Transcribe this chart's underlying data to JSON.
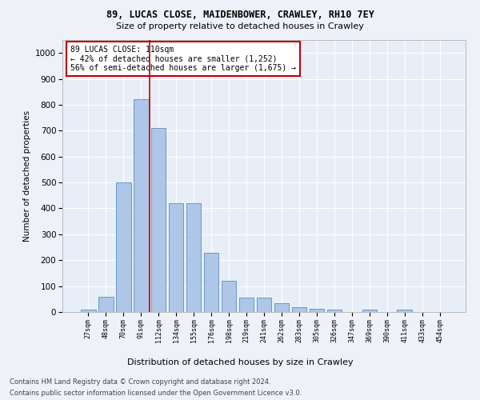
{
  "title1": "89, LUCAS CLOSE, MAIDENBOWER, CRAWLEY, RH10 7EY",
  "title2": "Size of property relative to detached houses in Crawley",
  "xlabel": "Distribution of detached houses by size in Crawley",
  "ylabel": "Number of detached properties",
  "categories": [
    "27sqm",
    "48sqm",
    "70sqm",
    "91sqm",
    "112sqm",
    "134sqm",
    "155sqm",
    "176sqm",
    "198sqm",
    "219sqm",
    "241sqm",
    "262sqm",
    "283sqm",
    "305sqm",
    "326sqm",
    "347sqm",
    "369sqm",
    "390sqm",
    "411sqm",
    "433sqm",
    "454sqm"
  ],
  "values": [
    8,
    60,
    500,
    820,
    710,
    420,
    420,
    230,
    120,
    55,
    55,
    35,
    18,
    12,
    10,
    0,
    10,
    0,
    10,
    0,
    0
  ],
  "bar_color": "#aec6e8",
  "bar_edge_color": "#5a8fc2",
  "marker_line_color": "#c00000",
  "marker_bin_index": 4,
  "annotation_text": "89 LUCAS CLOSE: 110sqm\n← 42% of detached houses are smaller (1,252)\n56% of semi-detached houses are larger (1,675) →",
  "annotation_box_color": "#ffffff",
  "annotation_box_edge": "#c00000",
  "ylim": [
    0,
    1050
  ],
  "yticks": [
    0,
    100,
    200,
    300,
    400,
    500,
    600,
    700,
    800,
    900,
    1000
  ],
  "footer1": "Contains HM Land Registry data © Crown copyright and database right 2024.",
  "footer2": "Contains public sector information licensed under the Open Government Licence v3.0.",
  "bg_color": "#eef2f8",
  "plot_bg_color": "#e8eef8"
}
